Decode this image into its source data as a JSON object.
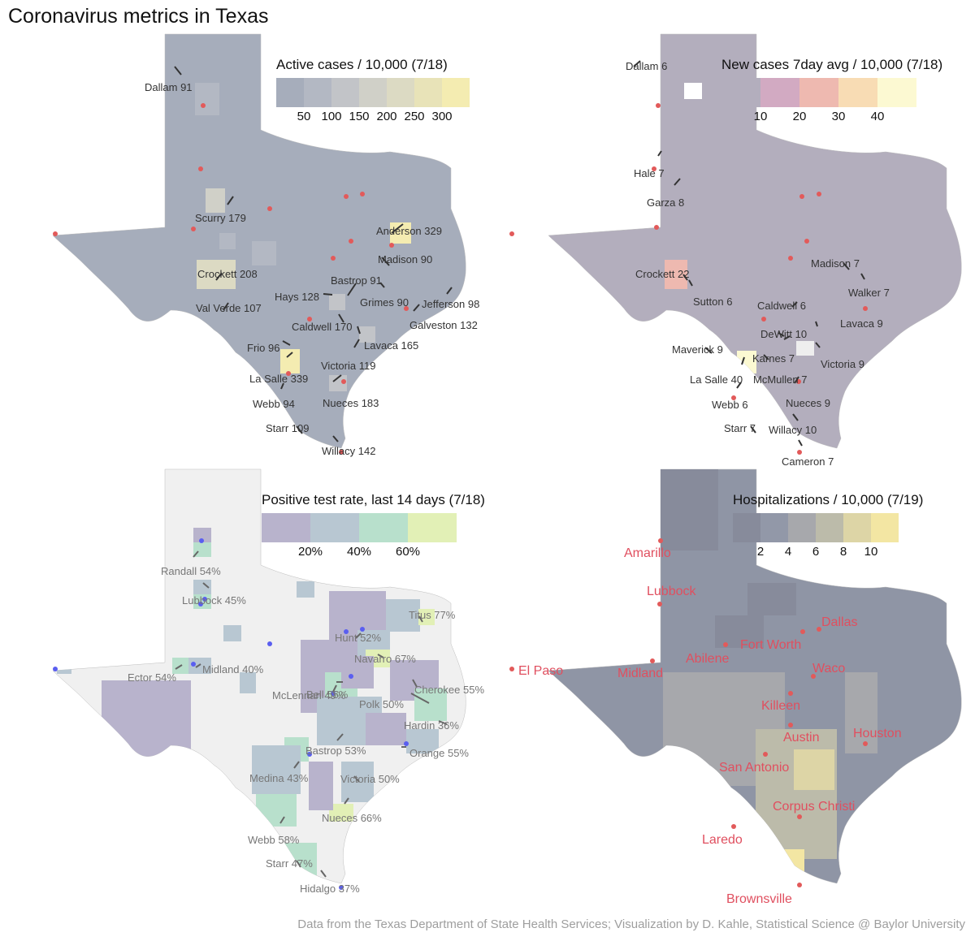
{
  "title": "Coronavirus metrics in Texas",
  "caption": "Data from the Texas Department of State Health Services; Visualization by D. Kahle, Statistical Science @ Baylor University",
  "chart_data": [
    {
      "type": "map",
      "title": "Active cases / 10,000 (7/18)",
      "legend": {
        "ticks": [
          "50",
          "100",
          "150",
          "200",
          "250",
          "300"
        ],
        "colors": [
          "#a6adbb",
          "#b3b8c3",
          "#c2c4c8",
          "#d0d0c8",
          "#dcdac3",
          "#e8e3b8",
          "#f4ecb1"
        ]
      },
      "labels": [
        {
          "text": "Dallam 91"
        },
        {
          "text": "Scurry 179"
        },
        {
          "text": "Anderson 329"
        },
        {
          "text": "Madison 90"
        },
        {
          "text": "Crockett 208"
        },
        {
          "text": "Bastrop 91"
        },
        {
          "text": "Hays 128"
        },
        {
          "text": "Grimes 90"
        },
        {
          "text": "Jefferson 98"
        },
        {
          "text": "Val Verde 107"
        },
        {
          "text": "Caldwell 170"
        },
        {
          "text": "Galveston 132"
        },
        {
          "text": "Frio 96"
        },
        {
          "text": "Lavaca 165"
        },
        {
          "text": "Victoria 119"
        },
        {
          "text": "La Salle 339"
        },
        {
          "text": "Webb 94"
        },
        {
          "text": "Nueces 183"
        },
        {
          "text": "Starr 109"
        },
        {
          "text": "Willacy 142"
        }
      ]
    },
    {
      "type": "map",
      "title": "New cases 7day avg / 10,000 (7/18)",
      "legend": {
        "ticks": [
          "10",
          "20",
          "30",
          "40"
        ],
        "colors": [
          "#b3aebd",
          "#d2aac2",
          "#eeb9b0",
          "#f8dcb4",
          "#fcf9d2"
        ]
      },
      "labels": [
        {
          "text": "Dallam 6"
        },
        {
          "text": "Hale 7"
        },
        {
          "text": "Garza 8"
        },
        {
          "text": "Crockett 22"
        },
        {
          "text": "Madison 7"
        },
        {
          "text": "Sutton 6"
        },
        {
          "text": "Walker 7"
        },
        {
          "text": "Caldwell 6"
        },
        {
          "text": "Lavaca 9"
        },
        {
          "text": "DeWitt 10"
        },
        {
          "text": "Maverick 9"
        },
        {
          "text": "Karnes 7"
        },
        {
          "text": "Victoria 9"
        },
        {
          "text": "La Salle 40"
        },
        {
          "text": "McMullen 7"
        },
        {
          "text": "Webb 6"
        },
        {
          "text": "Nueces 9"
        },
        {
          "text": "Starr 7"
        },
        {
          "text": "Willacy 10"
        },
        {
          "text": "Cameron 7"
        }
      ]
    },
    {
      "type": "map",
      "title": "Positive test rate, last 14 days (7/18)",
      "legend": {
        "ticks": [
          "20%",
          "40%",
          "60%"
        ],
        "colors": [
          "#b8b3cc",
          "#b8c7d2",
          "#b8e0cc",
          "#e2f0b6"
        ]
      },
      "labels": [
        {
          "text": "Randall 54%"
        },
        {
          "text": "Lubbock 45%"
        },
        {
          "text": "Titus 77%"
        },
        {
          "text": "Hunt 52%"
        },
        {
          "text": "Navarro 67%"
        },
        {
          "text": "Ector 54%"
        },
        {
          "text": "Midland 40%"
        },
        {
          "text": "Cherokee 55%"
        },
        {
          "text": "McLennan 49%"
        },
        {
          "text": "Polk 50%"
        },
        {
          "text": "Bell 55%"
        },
        {
          "text": "Hardin 36%"
        },
        {
          "text": "Bastrop 53%"
        },
        {
          "text": "Orange 55%"
        },
        {
          "text": "Medina 43%"
        },
        {
          "text": "Victoria 50%"
        },
        {
          "text": "Nueces 66%"
        },
        {
          "text": "Webb 58%"
        },
        {
          "text": "Starr 47%"
        },
        {
          "text": "Hidalgo 37%"
        }
      ]
    },
    {
      "type": "map",
      "title": "Hospitalizations / 10,000 (7/19)",
      "legend": {
        "ticks": [
          "2",
          "4",
          "6",
          "8",
          "10"
        ],
        "colors": [
          "#878b9b",
          "#9298a8",
          "#a7a8ac",
          "#bcbbaa",
          "#ddd5a6",
          "#f3e6a3"
        ]
      },
      "cities": [
        "Amarillo",
        "Lubbock",
        "Dallas",
        "Fort Worth",
        "Abilene",
        "El Paso",
        "Midland",
        "Waco",
        "Killeen",
        "Austin",
        "Houston",
        "San Antonio",
        "Corpus Christi",
        "Laredo",
        "Brownsville"
      ]
    }
  ]
}
